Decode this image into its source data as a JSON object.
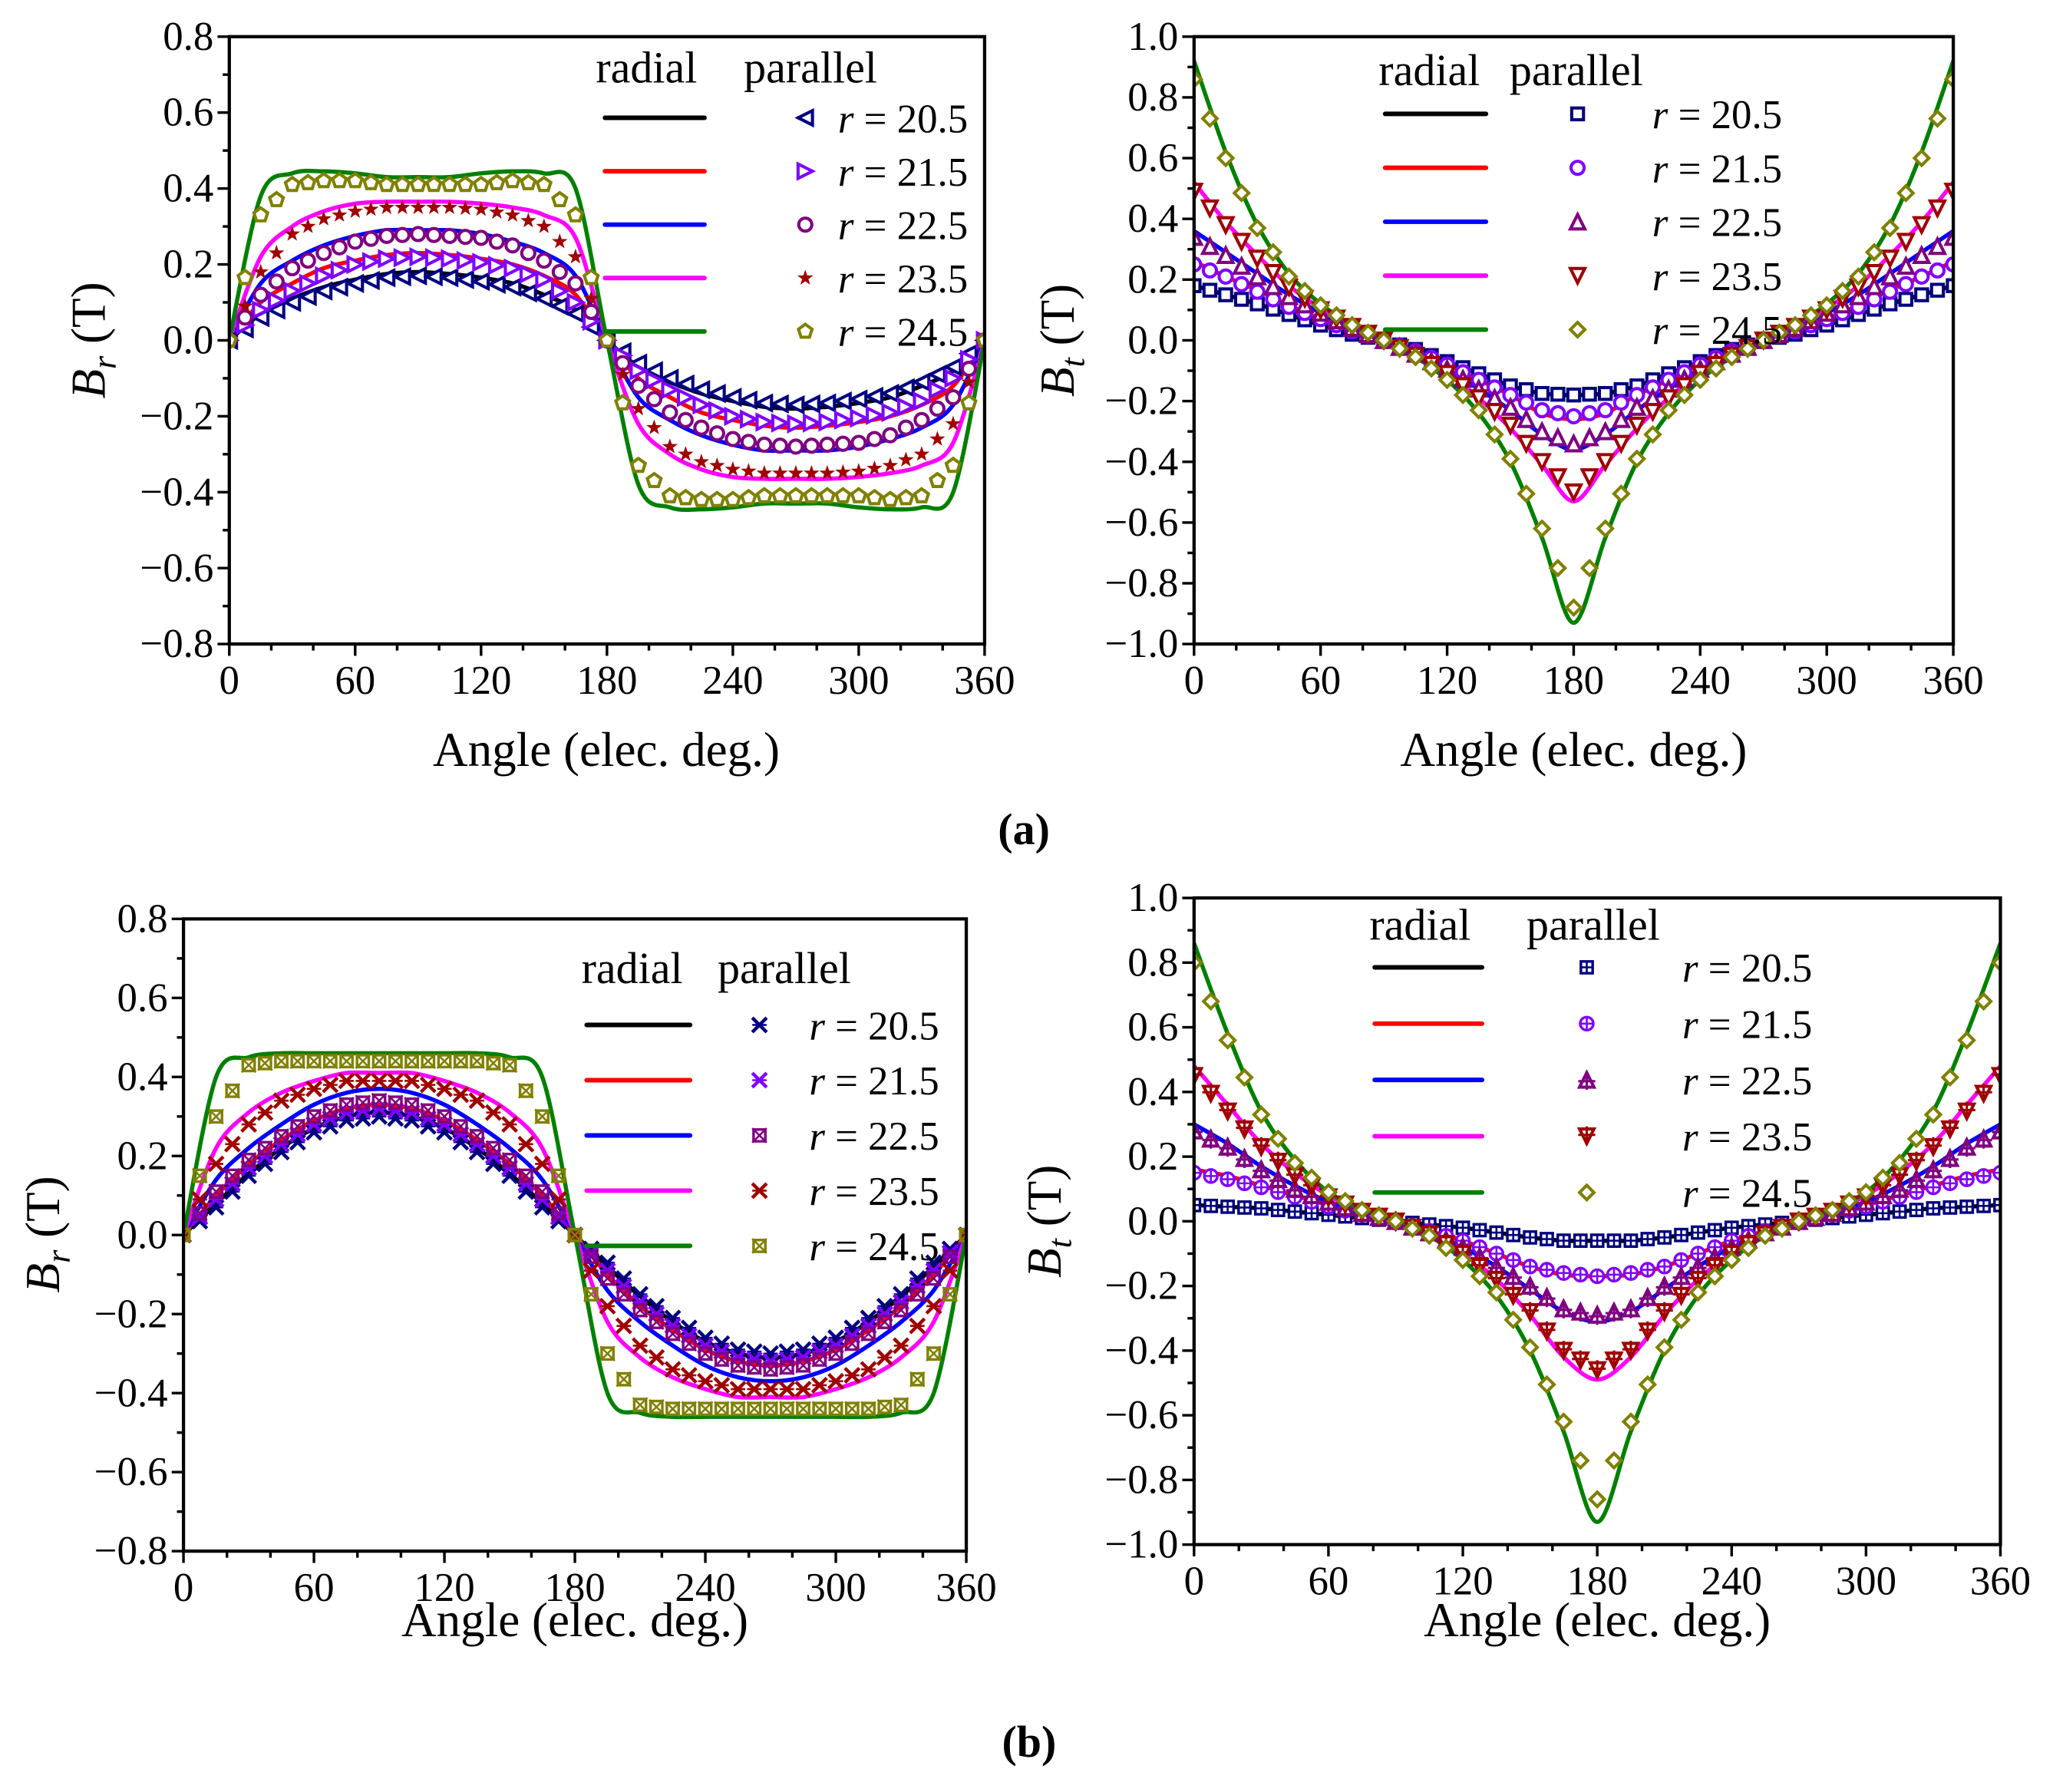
{
  "captions": [
    "(a)",
    "(b)"
  ],
  "legend": {
    "header_lines": "radial",
    "header_markers": "parallel",
    "var": "r",
    "eq": " = "
  },
  "chart_data": [
    {
      "type": "line",
      "panel": "a-left",
      "caption": "(a)",
      "ylabel": {
        "symbol": "B",
        "sub": "r",
        "unit": " (T)"
      },
      "xlabel": "Angle (elec. deg.)",
      "xlim": [
        0,
        360
      ],
      "ylim": [
        -0.8,
        0.8
      ],
      "xticks": [
        0,
        60,
        120,
        180,
        240,
        300,
        360
      ],
      "yticks": [
        -0.8,
        -0.6,
        -0.4,
        -0.2,
        0.0,
        0.2,
        0.4,
        0.6,
        0.8
      ],
      "x_step_deg": 15,
      "symmetry": "f(x+180) = -f(x)",
      "x_half": [
        0,
        15,
        30,
        45,
        60,
        75,
        90,
        105,
        120,
        135,
        150,
        165,
        180
      ],
      "marker_shapes": [
        "tri-left",
        "tri-right",
        "circle",
        "star",
        "pentagon"
      ],
      "radial": [
        {
          "r": "20.5",
          "color": "#000000",
          "values": [
            0,
            0.07,
            0.11,
            0.14,
            0.16,
            0.175,
            0.18,
            0.175,
            0.165,
            0.15,
            0.12,
            0.08,
            0
          ]
        },
        {
          "r": "21.5",
          "color": "#ff0000",
          "values": [
            0,
            0.1,
            0.15,
            0.19,
            0.21,
            0.225,
            0.23,
            0.225,
            0.215,
            0.2,
            0.17,
            0.12,
            0
          ]
        },
        {
          "r": "22.5",
          "color": "#0000ff",
          "values": [
            0,
            0.15,
            0.21,
            0.25,
            0.275,
            0.29,
            0.29,
            0.29,
            0.28,
            0.26,
            0.23,
            0.17,
            0
          ]
        },
        {
          "r": "23.5",
          "color": "#ff00ff",
          "values": [
            0,
            0.22,
            0.3,
            0.34,
            0.36,
            0.365,
            0.365,
            0.365,
            0.36,
            0.35,
            0.33,
            0.27,
            0
          ]
        },
        {
          "r": "24.5",
          "color": "#008000",
          "values": [
            0,
            0.38,
            0.44,
            0.445,
            0.44,
            0.43,
            0.43,
            0.43,
            0.44,
            0.445,
            0.44,
            0.4,
            0
          ]
        }
      ],
      "parallel": [
        {
          "r": "20.5",
          "color": "#000080",
          "values": [
            0,
            0.06,
            0.1,
            0.13,
            0.15,
            0.165,
            0.17,
            0.165,
            0.155,
            0.14,
            0.11,
            0.07,
            0
          ]
        },
        {
          "r": "21.5",
          "color": "#8000ff",
          "values": [
            0,
            0.08,
            0.13,
            0.17,
            0.2,
            0.215,
            0.22,
            0.215,
            0.205,
            0.19,
            0.16,
            0.1,
            0
          ]
        },
        {
          "r": "22.5",
          "color": "#800080",
          "values": [
            0,
            0.12,
            0.19,
            0.23,
            0.26,
            0.275,
            0.28,
            0.275,
            0.27,
            0.25,
            0.21,
            0.15,
            0
          ]
        },
        {
          "r": "23.5",
          "color": "#a00000",
          "values": [
            0,
            0.18,
            0.28,
            0.32,
            0.34,
            0.35,
            0.35,
            0.35,
            0.345,
            0.33,
            0.3,
            0.22,
            0
          ]
        },
        {
          "r": "24.5",
          "color": "#808000",
          "values": [
            0,
            0.33,
            0.41,
            0.42,
            0.42,
            0.41,
            0.41,
            0.41,
            0.41,
            0.42,
            0.41,
            0.33,
            0
          ]
        }
      ]
    },
    {
      "type": "line",
      "panel": "a-right",
      "caption": "(a)",
      "ylabel": {
        "symbol": "B",
        "sub": "t",
        "unit": " (T)"
      },
      "xlabel": "Angle (elec. deg.)",
      "xlim": [
        0,
        360
      ],
      "ylim": [
        -1.0,
        1.0
      ],
      "xticks": [
        0,
        60,
        120,
        180,
        240,
        300,
        360
      ],
      "yticks": [
        -1.0,
        -0.8,
        -0.6,
        -0.4,
        -0.2,
        0.0,
        0.2,
        0.4,
        0.6,
        0.8,
        1.0
      ],
      "x_step_deg": 15,
      "symmetry": "f(360-x) = f(x)",
      "x_half": [
        0,
        15,
        30,
        45,
        60,
        75,
        90,
        105,
        120,
        135,
        150,
        165,
        180
      ],
      "marker_shapes": [
        "square",
        "circle",
        "tri-up",
        "tri-down",
        "diamond"
      ],
      "radial": [
        {
          "r": "20.5",
          "color": "#000000",
          "values": [
            0.18,
            0.15,
            0.12,
            0.085,
            0.05,
            0.02,
            0,
            -0.03,
            -0.07,
            -0.11,
            -0.15,
            -0.175,
            -0.18
          ]
        },
        {
          "r": "21.5",
          "color": "#ff0000",
          "values": [
            0.26,
            0.21,
            0.165,
            0.115,
            0.07,
            0.03,
            0,
            -0.035,
            -0.08,
            -0.13,
            -0.18,
            -0.24,
            -0.26
          ]
        },
        {
          "r": "22.5",
          "color": "#0000ff",
          "values": [
            0.36,
            0.29,
            0.22,
            0.15,
            0.09,
            0.04,
            0,
            -0.045,
            -0.095,
            -0.16,
            -0.23,
            -0.31,
            -0.36
          ]
        },
        {
          "r": "23.5",
          "color": "#ff00ff",
          "values": [
            0.52,
            0.39,
            0.28,
            0.18,
            0.105,
            0.045,
            0,
            -0.05,
            -0.11,
            -0.19,
            -0.29,
            -0.41,
            -0.53
          ]
        },
        {
          "r": "24.5",
          "color": "#008000",
          "values": [
            0.92,
            0.62,
            0.38,
            0.22,
            0.12,
            0.05,
            0,
            -0.055,
            -0.13,
            -0.24,
            -0.4,
            -0.65,
            -0.93
          ]
        }
      ],
      "parallel": [
        {
          "r": "20.5",
          "color": "#000080",
          "values": [
            0.18,
            0.15,
            0.12,
            0.085,
            0.05,
            0.02,
            0,
            -0.03,
            -0.07,
            -0.11,
            -0.15,
            -0.175,
            -0.18
          ]
        },
        {
          "r": "21.5",
          "color": "#8000ff",
          "values": [
            0.25,
            0.21,
            0.16,
            0.11,
            0.07,
            0.03,
            0,
            -0.035,
            -0.08,
            -0.13,
            -0.18,
            -0.23,
            -0.25
          ]
        },
        {
          "r": "22.5",
          "color": "#800080",
          "values": [
            0.34,
            0.28,
            0.21,
            0.145,
            0.09,
            0.04,
            0,
            -0.045,
            -0.095,
            -0.16,
            -0.22,
            -0.3,
            -0.34
          ]
        },
        {
          "r": "23.5",
          "color": "#a00000",
          "values": [
            0.49,
            0.38,
            0.27,
            0.175,
            0.1,
            0.045,
            0,
            -0.05,
            -0.11,
            -0.19,
            -0.28,
            -0.4,
            -0.5
          ]
        },
        {
          "r": "24.5",
          "color": "#808000",
          "values": [
            0.86,
            0.6,
            0.37,
            0.21,
            0.115,
            0.05,
            0,
            -0.055,
            -0.13,
            -0.23,
            -0.39,
            -0.62,
            -0.88
          ]
        }
      ]
    },
    {
      "type": "line",
      "panel": "b-left",
      "caption": "(b)",
      "ylabel": {
        "symbol": "B",
        "sub": "r",
        "unit": " (T)"
      },
      "xlabel": "Angle (elec. deg.)",
      "xlim": [
        0,
        360
      ],
      "ylim": [
        -0.8,
        0.8
      ],
      "xticks": [
        0,
        60,
        120,
        180,
        240,
        300,
        360
      ],
      "yticks": [
        -0.8,
        -0.6,
        -0.4,
        -0.2,
        0.0,
        0.2,
        0.4,
        0.6,
        0.8
      ],
      "x_step_deg": 15,
      "symmetry": "f(x+180) = -f(x)",
      "x_half": [
        0,
        15,
        30,
        45,
        60,
        75,
        90,
        105,
        120,
        135,
        150,
        165,
        180
      ],
      "marker_shapes": [
        "x",
        "x",
        "square-x",
        "x",
        "square-x"
      ],
      "radial": [
        {
          "r": "20.5",
          "color": "#000000",
          "values": [
            0,
            0.08,
            0.155,
            0.22,
            0.27,
            0.3,
            0.31,
            0.3,
            0.27,
            0.22,
            0.155,
            0.08,
            0
          ]
        },
        {
          "r": "21.5",
          "color": "#ff0000",
          "values": [
            0,
            0.1,
            0.18,
            0.24,
            0.29,
            0.32,
            0.33,
            0.32,
            0.29,
            0.24,
            0.18,
            0.1,
            0
          ]
        },
        {
          "r": "22.5",
          "color": "#0000ff",
          "values": [
            0,
            0.14,
            0.22,
            0.28,
            0.33,
            0.36,
            0.37,
            0.36,
            0.33,
            0.28,
            0.22,
            0.14,
            0
          ]
        },
        {
          "r": "23.5",
          "color": "#ff00ff",
          "values": [
            0,
            0.22,
            0.31,
            0.36,
            0.39,
            0.41,
            0.41,
            0.41,
            0.39,
            0.36,
            0.31,
            0.22,
            0
          ]
        },
        {
          "r": "24.5",
          "color": "#008000",
          "values": [
            0,
            0.4,
            0.45,
            0.46,
            0.46,
            0.46,
            0.46,
            0.46,
            0.46,
            0.46,
            0.45,
            0.4,
            0
          ]
        }
      ],
      "parallel": [
        {
          "r": "20.5",
          "color": "#000080",
          "values": [
            0,
            0.07,
            0.15,
            0.21,
            0.26,
            0.29,
            0.3,
            0.29,
            0.26,
            0.21,
            0.15,
            0.07,
            0
          ]
        },
        {
          "r": "21.5",
          "color": "#8000ff",
          "values": [
            0,
            0.09,
            0.17,
            0.23,
            0.28,
            0.31,
            0.32,
            0.31,
            0.28,
            0.23,
            0.17,
            0.09,
            0
          ]
        },
        {
          "r": "22.5",
          "color": "#800080",
          "values": [
            0,
            0.11,
            0.19,
            0.25,
            0.3,
            0.33,
            0.34,
            0.33,
            0.3,
            0.25,
            0.19,
            0.11,
            0
          ]
        },
        {
          "r": "23.5",
          "color": "#a00000",
          "values": [
            0,
            0.18,
            0.28,
            0.34,
            0.37,
            0.39,
            0.39,
            0.39,
            0.37,
            0.34,
            0.28,
            0.18,
            0
          ]
        },
        {
          "r": "24.5",
          "color": "#808000",
          "values": [
            0,
            0.3,
            0.43,
            0.44,
            0.44,
            0.44,
            0.44,
            0.44,
            0.44,
            0.44,
            0.43,
            0.3,
            0
          ]
        }
      ]
    },
    {
      "type": "line",
      "panel": "b-right",
      "caption": "(b)",
      "ylabel": {
        "symbol": "B",
        "sub": "t",
        "unit": " (T)"
      },
      "xlabel": "Angle (elec. deg.)",
      "xlim": [
        0,
        360
      ],
      "ylim": [
        -1.0,
        1.0
      ],
      "xticks": [
        0,
        60,
        120,
        180,
        240,
        300,
        360
      ],
      "yticks": [
        -1.0,
        -0.8,
        -0.6,
        -0.4,
        -0.2,
        0.0,
        0.2,
        0.4,
        0.6,
        0.8,
        1.0
      ],
      "x_step_deg": 15,
      "symmetry": "f(360-x) = f(x)",
      "x_half": [
        0,
        15,
        30,
        45,
        60,
        75,
        90,
        105,
        120,
        135,
        150,
        165,
        180
      ],
      "marker_shapes": [
        "square-plus",
        "circle-plus",
        "tri-plus",
        "tri-plus-down",
        "diamond"
      ],
      "radial": [
        {
          "r": "20.5",
          "color": "#000000",
          "values": [
            0.05,
            0.045,
            0.04,
            0.03,
            0.02,
            0.01,
            0,
            -0.01,
            -0.02,
            -0.035,
            -0.05,
            -0.06,
            -0.06
          ]
        },
        {
          "r": "21.5",
          "color": "#ff0000",
          "values": [
            0.16,
            0.14,
            0.11,
            0.08,
            0.05,
            0.02,
            0,
            -0.03,
            -0.06,
            -0.1,
            -0.14,
            -0.165,
            -0.17
          ]
        },
        {
          "r": "22.5",
          "color": "#0000ff",
          "values": [
            0.3,
            0.24,
            0.17,
            0.11,
            0.06,
            0.025,
            0,
            -0.035,
            -0.08,
            -0.14,
            -0.21,
            -0.28,
            -0.31
          ]
        },
        {
          "r": "23.5",
          "color": "#ff00ff",
          "values": [
            0.48,
            0.36,
            0.24,
            0.15,
            0.08,
            0.03,
            0,
            -0.04,
            -0.1,
            -0.18,
            -0.29,
            -0.42,
            -0.49
          ]
        },
        {
          "r": "24.5",
          "color": "#008000",
          "values": [
            0.86,
            0.58,
            0.34,
            0.19,
            0.09,
            0.035,
            0,
            -0.045,
            -0.12,
            -0.23,
            -0.4,
            -0.65,
            -0.93
          ]
        }
      ],
      "parallel": [
        {
          "r": "20.5",
          "color": "#000080",
          "values": [
            0.05,
            0.045,
            0.04,
            0.03,
            0.02,
            0.01,
            0,
            -0.01,
            -0.02,
            -0.035,
            -0.05,
            -0.06,
            -0.06
          ]
        },
        {
          "r": "21.5",
          "color": "#8000ff",
          "values": [
            0.15,
            0.13,
            0.105,
            0.075,
            0.045,
            0.02,
            0,
            -0.03,
            -0.06,
            -0.1,
            -0.14,
            -0.16,
            -0.17
          ]
        },
        {
          "r": "22.5",
          "color": "#800080",
          "values": [
            0.28,
            0.23,
            0.16,
            0.1,
            0.06,
            0.025,
            0,
            -0.035,
            -0.08,
            -0.14,
            -0.2,
            -0.27,
            -0.29
          ]
        },
        {
          "r": "23.5",
          "color": "#a00000",
          "values": [
            0.45,
            0.34,
            0.23,
            0.14,
            0.075,
            0.03,
            0,
            -0.04,
            -0.1,
            -0.18,
            -0.28,
            -0.4,
            -0.46
          ]
        },
        {
          "r": "24.5",
          "color": "#808000",
          "values": [
            0.8,
            0.56,
            0.33,
            0.18,
            0.09,
            0.035,
            0,
            -0.045,
            -0.12,
            -0.22,
            -0.39,
            -0.62,
            -0.86
          ]
        }
      ]
    }
  ]
}
